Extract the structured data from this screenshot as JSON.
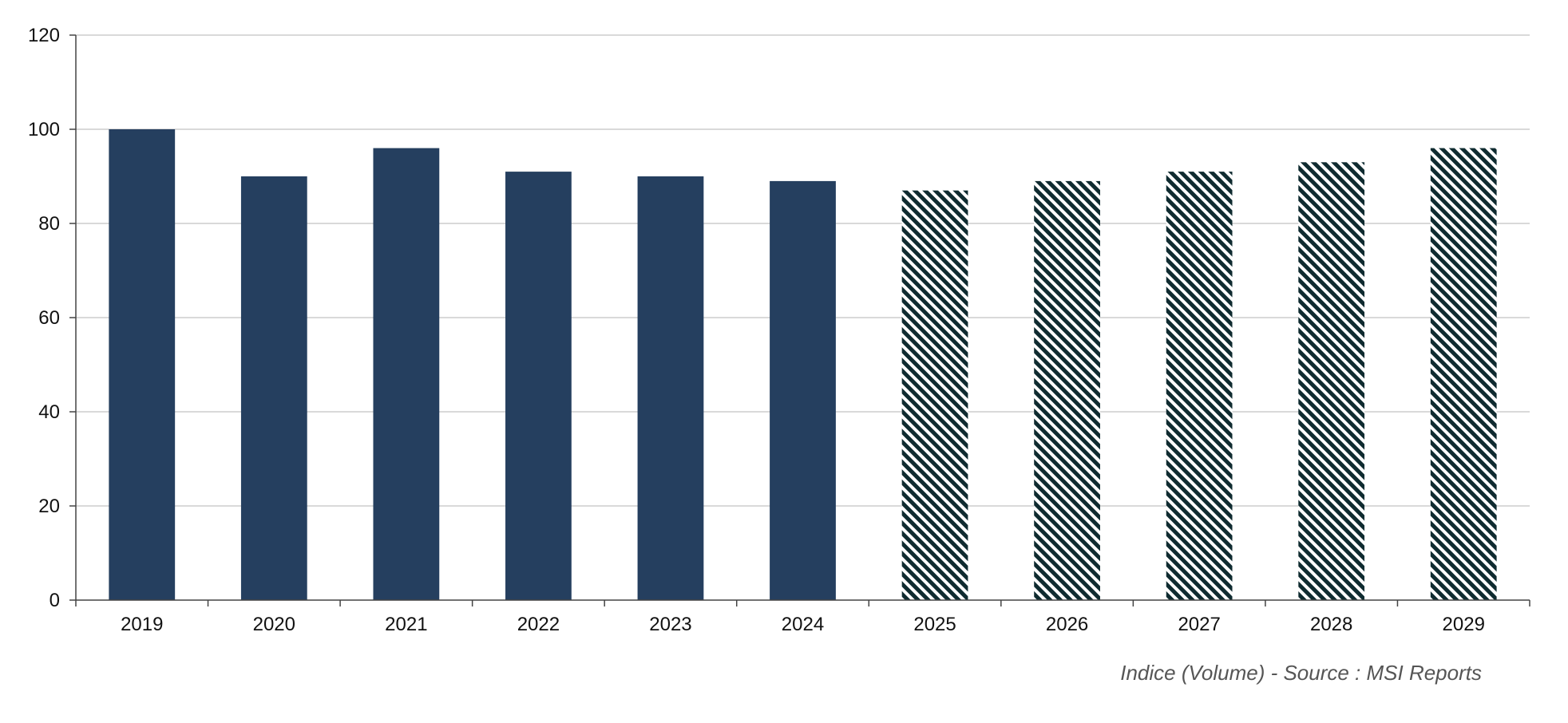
{
  "chart_data": {
    "type": "bar",
    "categories": [
      "2019",
      "2020",
      "2021",
      "2022",
      "2023",
      "2024",
      "2025",
      "2026",
      "2027",
      "2028",
      "2029"
    ],
    "values": [
      100,
      90,
      96,
      91,
      90,
      89,
      87,
      89,
      91,
      93,
      96
    ],
    "forecast_from_index": 6,
    "title": "",
    "xlabel": "",
    "ylabel": "",
    "ylim": [
      0,
      120
    ],
    "yticks": [
      0,
      20,
      40,
      60,
      80,
      100,
      120
    ],
    "grid": true,
    "legend": "none",
    "colors": {
      "bar": "#253f5f",
      "hatch_fg": "#0f2b30",
      "hatch_bg": "#ffffff",
      "grid": "#d9d9d9",
      "axis": "#444444"
    }
  },
  "footer": {
    "source": "Indice (Volume) - Source : MSI Reports"
  }
}
